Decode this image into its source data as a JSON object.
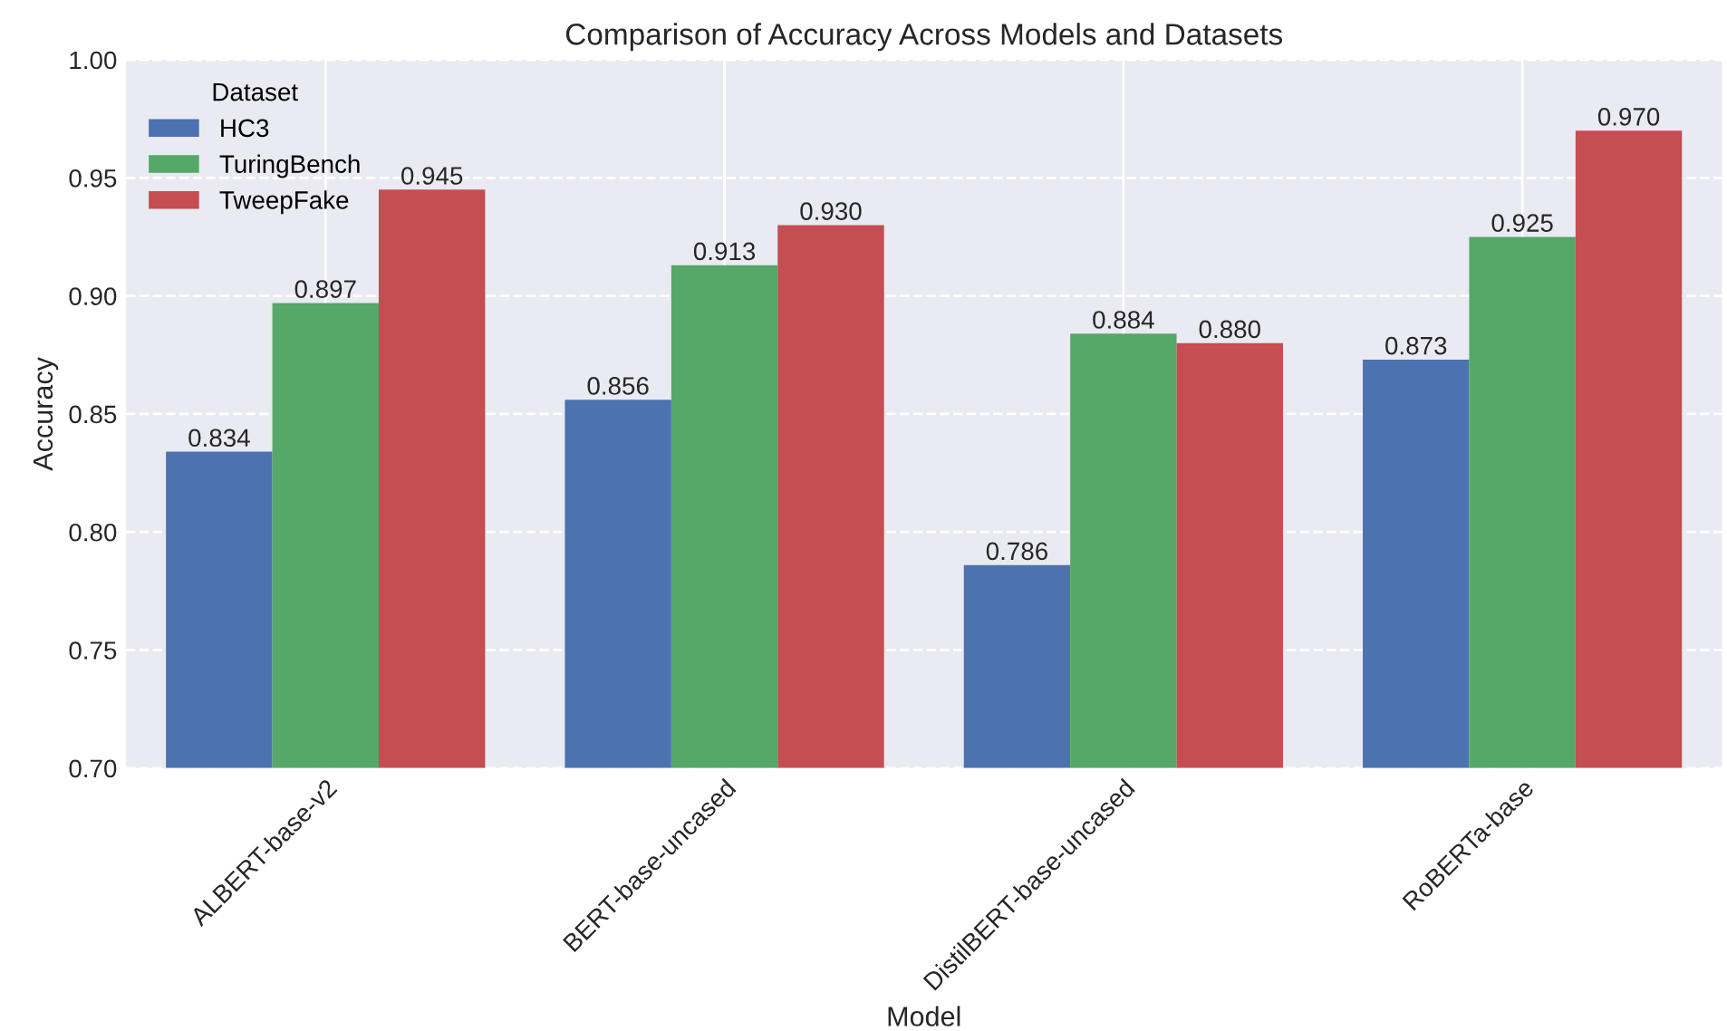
{
  "chart_data": {
    "type": "bar",
    "title": "Comparison of Accuracy Across Models and Datasets",
    "xlabel": "Model",
    "ylabel": "Accuracy",
    "legend_title": "Dataset",
    "categories": [
      "ALBERT-base-v2",
      "BERT-base-uncased",
      "DistilBERT-base-uncased",
      "RoBERTa-base"
    ],
    "series": [
      {
        "name": "HC3",
        "color": "#4c72b0",
        "values": [
          0.834,
          0.856,
          0.786,
          0.873
        ],
        "value_labels": [
          "0.834",
          "0.856",
          "0.786",
          "0.873"
        ]
      },
      {
        "name": "TuringBench",
        "color": "#55a868",
        "values": [
          0.897,
          0.913,
          0.884,
          0.925
        ],
        "value_labels": [
          "0.897",
          "0.913",
          "0.884",
          "0.925"
        ]
      },
      {
        "name": "TweepFake",
        "color": "#c44e52",
        "values": [
          0.945,
          0.93,
          0.88,
          0.97
        ],
        "value_labels": [
          "0.945",
          "0.930",
          "0.880",
          "0.970"
        ]
      }
    ],
    "ylim": [
      0.7,
      1.0
    ],
    "yticks": [
      {
        "value": 0.7,
        "label": "0.70"
      },
      {
        "value": 0.75,
        "label": "0.75"
      },
      {
        "value": 0.8,
        "label": "0.80"
      },
      {
        "value": 0.85,
        "label": "0.85"
      },
      {
        "value": 0.9,
        "label": "0.90"
      },
      {
        "value": 0.95,
        "label": "0.95"
      },
      {
        "value": 1.0,
        "label": "1.00"
      }
    ],
    "grid": true,
    "legend": "top left"
  }
}
